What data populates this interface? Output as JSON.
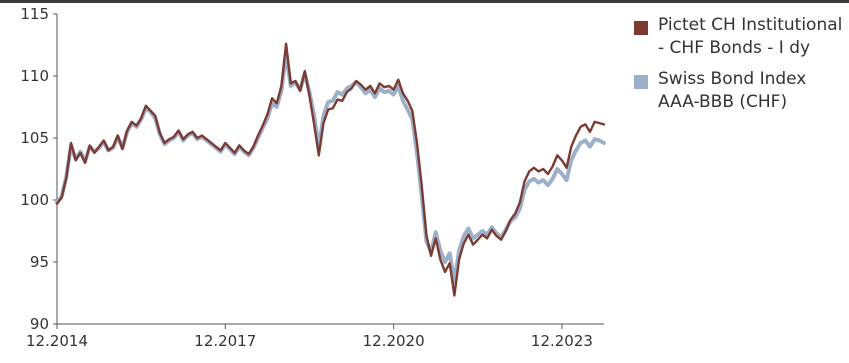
{
  "chart_data": {
    "type": "line",
    "title": "",
    "xlabel": "",
    "ylabel": "",
    "x_ticks": [
      "12.2014",
      "12.2017",
      "12.2020",
      "12.2023"
    ],
    "y_ticks": [
      90,
      95,
      100,
      105,
      110,
      115
    ],
    "ylim": [
      90,
      115
    ],
    "xlim": [
      "2014-12",
      "2024-09"
    ],
    "grid": false,
    "legend_position": "right",
    "series": [
      {
        "name": "Pictet CH Institutional - CHF Bonds - I dy",
        "color": "#7b3b31",
        "x": [
          "2014-12",
          "2015-01",
          "2015-02",
          "2015-03",
          "2015-04",
          "2015-05",
          "2015-06",
          "2015-07",
          "2015-08",
          "2015-09",
          "2015-10",
          "2015-11",
          "2015-12",
          "2016-01",
          "2016-02",
          "2016-03",
          "2016-04",
          "2016-05",
          "2016-06",
          "2016-07",
          "2016-08",
          "2016-09",
          "2016-10",
          "2016-11",
          "2016-12",
          "2017-01",
          "2017-02",
          "2017-03",
          "2017-04",
          "2017-05",
          "2017-06",
          "2017-07",
          "2017-08",
          "2017-09",
          "2017-10",
          "2017-11",
          "2017-12",
          "2018-01",
          "2018-02",
          "2018-03",
          "2018-04",
          "2018-05",
          "2018-06",
          "2018-07",
          "2018-08",
          "2018-09",
          "2018-10",
          "2018-11",
          "2018-12",
          "2019-01",
          "2019-02",
          "2019-03",
          "2019-04",
          "2019-05",
          "2019-06",
          "2019-07",
          "2019-08",
          "2019-09",
          "2019-10",
          "2019-11",
          "2019-12",
          "2020-01",
          "2020-02",
          "2020-03",
          "2020-04",
          "2020-05",
          "2020-06",
          "2020-07",
          "2020-08",
          "2020-09",
          "2020-10",
          "2020-11",
          "2020-12",
          "2021-01",
          "2021-02",
          "2021-03",
          "2021-04",
          "2021-05",
          "2021-06",
          "2021-07",
          "2021-08",
          "2021-09",
          "2021-10",
          "2021-11",
          "2021-12",
          "2022-01",
          "2022-02",
          "2022-03",
          "2022-04",
          "2022-05",
          "2022-06",
          "2022-07",
          "2022-08",
          "2022-09",
          "2022-10",
          "2022-11",
          "2022-12",
          "2023-01",
          "2023-02",
          "2023-03",
          "2023-04",
          "2023-05",
          "2023-06",
          "2023-07",
          "2023-08",
          "2023-09",
          "2023-10",
          "2023-11",
          "2023-12",
          "2024-01",
          "2024-02",
          "2024-03",
          "2024-04",
          "2024-05",
          "2024-06",
          "2024-07",
          "2024-08",
          "2024-09"
        ],
        "values": [
          99.7,
          100.2,
          101.8,
          104.6,
          103.2,
          103.8,
          103.0,
          104.4,
          103.8,
          104.3,
          104.8,
          104.0,
          104.3,
          105.2,
          104.1,
          105.6,
          106.3,
          106.0,
          106.6,
          107.6,
          107.2,
          106.8,
          105.4,
          104.6,
          104.9,
          105.1,
          105.6,
          104.9,
          105.3,
          105.5,
          105.0,
          105.2,
          104.9,
          104.6,
          104.3,
          104.0,
          104.6,
          104.2,
          103.8,
          104.4,
          104.0,
          103.7,
          104.3,
          105.2,
          106.0,
          106.9,
          108.2,
          107.8,
          109.2,
          112.6,
          109.4,
          109.6,
          108.8,
          110.4,
          108.4,
          106.1,
          103.6,
          106.2,
          107.3,
          107.4,
          108.1,
          108.0,
          108.7,
          109.0,
          109.6,
          109.3,
          108.9,
          109.2,
          108.6,
          109.4,
          109.1,
          109.2,
          108.9,
          109.7,
          108.6,
          108.0,
          107.2,
          104.6,
          101.2,
          97.2,
          95.5,
          96.9,
          95.2,
          94.2,
          94.9,
          92.3,
          95.2,
          96.5,
          97.2,
          96.4,
          96.8,
          97.2,
          96.9,
          97.6,
          97.1,
          96.8,
          97.5,
          98.4,
          98.9,
          99.8,
          101.5,
          102.3,
          102.6,
          102.3,
          102.5,
          102.1,
          102.7,
          103.6,
          103.2,
          102.6,
          104.3,
          105.2,
          105.9,
          106.1,
          105.5,
          106.3,
          106.2,
          106.1
        ]
      },
      {
        "name": "Swiss Bond Index AAA-BBB (CHF)",
        "color": "#9db0c9",
        "x": [
          "2014-12",
          "2015-01",
          "2015-02",
          "2015-03",
          "2015-04",
          "2015-05",
          "2015-06",
          "2015-07",
          "2015-08",
          "2015-09",
          "2015-10",
          "2015-11",
          "2015-12",
          "2016-01",
          "2016-02",
          "2016-03",
          "2016-04",
          "2016-05",
          "2016-06",
          "2016-07",
          "2016-08",
          "2016-09",
          "2016-10",
          "2016-11",
          "2016-12",
          "2017-01",
          "2017-02",
          "2017-03",
          "2017-04",
          "2017-05",
          "2017-06",
          "2017-07",
          "2017-08",
          "2017-09",
          "2017-10",
          "2017-11",
          "2017-12",
          "2018-01",
          "2018-02",
          "2018-03",
          "2018-04",
          "2018-05",
          "2018-06",
          "2018-07",
          "2018-08",
          "2018-09",
          "2018-10",
          "2018-11",
          "2018-12",
          "2019-01",
          "2019-02",
          "2019-03",
          "2019-04",
          "2019-05",
          "2019-06",
          "2019-07",
          "2019-08",
          "2019-09",
          "2019-10",
          "2019-11",
          "2019-12",
          "2020-01",
          "2020-02",
          "2020-03",
          "2020-04",
          "2020-05",
          "2020-06",
          "2020-07",
          "2020-08",
          "2020-09",
          "2020-10",
          "2020-11",
          "2020-12",
          "2021-01",
          "2021-02",
          "2021-03",
          "2021-04",
          "2021-05",
          "2021-06",
          "2021-07",
          "2021-08",
          "2021-09",
          "2021-10",
          "2021-11",
          "2021-12",
          "2022-01",
          "2022-02",
          "2022-03",
          "2022-04",
          "2022-05",
          "2022-06",
          "2022-07",
          "2022-08",
          "2022-09",
          "2022-10",
          "2022-11",
          "2022-12",
          "2023-01",
          "2023-02",
          "2023-03",
          "2023-04",
          "2023-05",
          "2023-06",
          "2023-07",
          "2023-08",
          "2023-09",
          "2023-10",
          "2023-11",
          "2023-12",
          "2024-01",
          "2024-02",
          "2024-03",
          "2024-04",
          "2024-05",
          "2024-06",
          "2024-07",
          "2024-08",
          "2024-09"
        ],
        "values": [
          99.8,
          100.3,
          101.9,
          104.4,
          103.3,
          103.9,
          103.1,
          104.3,
          103.9,
          104.2,
          104.7,
          104.0,
          104.2,
          105.1,
          104.2,
          105.5,
          106.2,
          105.9,
          106.5,
          107.4,
          107.1,
          106.6,
          105.3,
          104.5,
          104.8,
          105.0,
          105.5,
          104.8,
          105.2,
          105.4,
          104.9,
          105.1,
          104.8,
          104.5,
          104.2,
          103.9,
          104.5,
          104.1,
          103.7,
          104.3,
          103.9,
          103.6,
          104.2,
          105.0,
          105.8,
          106.6,
          107.8,
          107.5,
          108.8,
          111.8,
          109.2,
          109.5,
          108.9,
          110.2,
          108.7,
          106.8,
          104.2,
          106.8,
          107.9,
          108.0,
          108.7,
          108.5,
          109.0,
          109.2,
          109.5,
          109.1,
          108.6,
          108.9,
          108.3,
          109.0,
          108.7,
          108.8,
          108.5,
          109.2,
          108.0,
          107.3,
          106.5,
          103.8,
          100.4,
          96.7,
          95.8,
          97.4,
          95.9,
          95.0,
          95.7,
          93.4,
          95.9,
          97.1,
          97.7,
          96.9,
          97.2,
          97.5,
          97.2,
          97.8,
          97.3,
          97.0,
          97.6,
          98.3,
          98.6,
          99.3,
          100.8,
          101.5,
          101.7,
          101.4,
          101.6,
          101.2,
          101.7,
          102.5,
          102.1,
          101.6,
          103.2,
          104.0,
          104.6,
          104.8,
          104.3,
          104.9,
          104.8,
          104.6
        ]
      }
    ]
  }
}
